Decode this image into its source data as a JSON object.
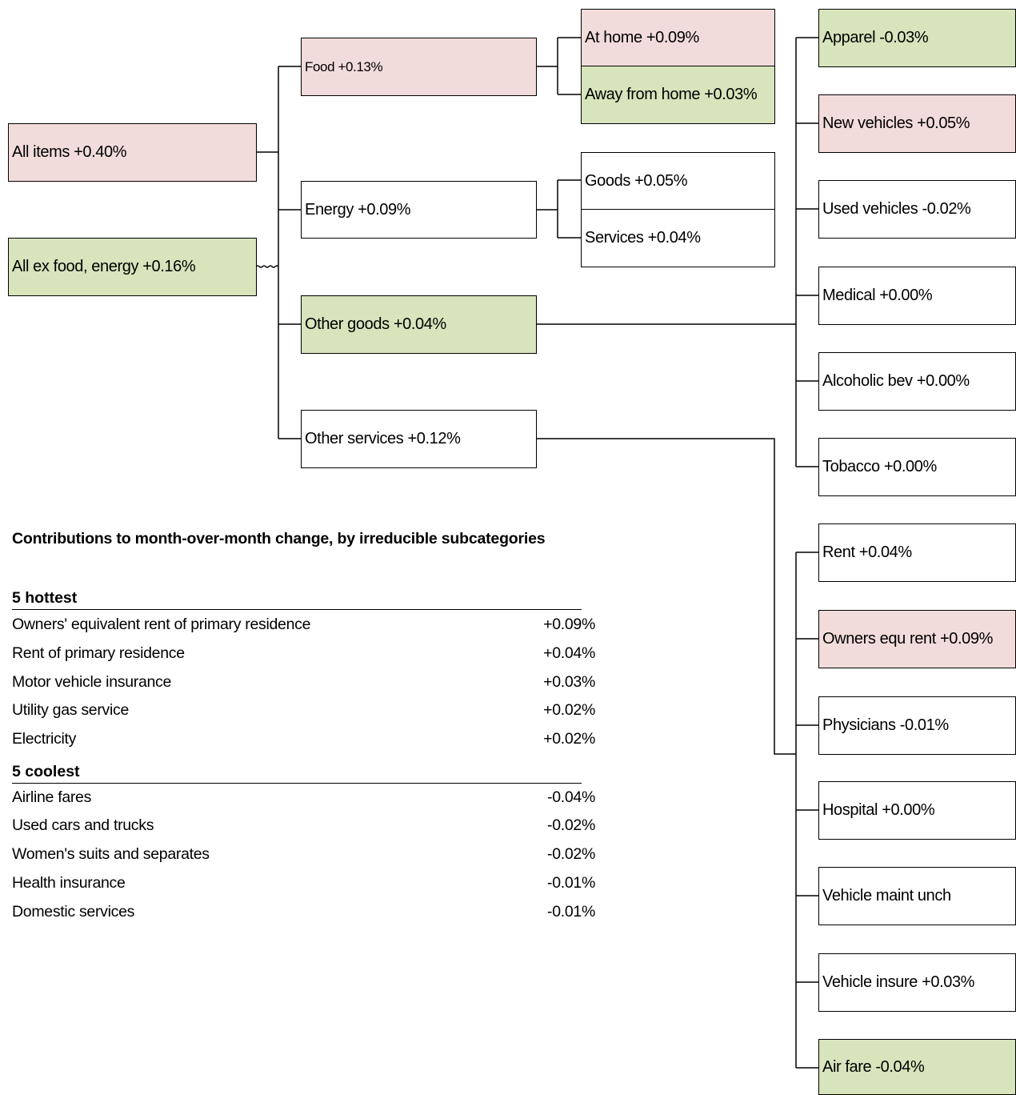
{
  "colors": {
    "hot": "#f2dcdb",
    "cool": "#d7e4bc",
    "neutral": "#ffffff",
    "line": "#000000"
  },
  "tree": {
    "all_items": "All items +0.40%",
    "core": "All ex food, energy +0.16%",
    "food": "Food +0.13%",
    "food_at_home": "At home +0.09%",
    "food_away": "Away from home +0.03%",
    "energy": "Energy +0.09%",
    "energy_goods": "Goods +0.05%",
    "energy_services": "Services +0.04%",
    "other_goods": "Other goods +0.04%",
    "other_services": "Other services +0.12%",
    "goods_items": [
      "Apparel -0.03%",
      "New vehicles +0.05%",
      "Used vehicles -0.02%",
      "Medical +0.00%",
      "Alcoholic bev +0.00%",
      "Tobacco +0.00%"
    ],
    "services_items": [
      "Rent +0.04%",
      "Owners equ rent +0.09%",
      "Physicians -0.01%",
      "Hospital +0.00%",
      "Vehicle maint unch",
      "Vehicle insure +0.03%",
      "Air fare -0.04%"
    ]
  },
  "contributions": {
    "title": "Contributions to month-over-month change, by irreducible subcategories",
    "hottest_label": "5 hottest",
    "hottest": [
      {
        "name": "Owners' equivalent rent of primary residence",
        "value": "+0.09%"
      },
      {
        "name": "Rent of primary residence",
        "value": "+0.04%"
      },
      {
        "name": "Motor vehicle insurance",
        "value": "+0.03%"
      },
      {
        "name": "Utility gas service",
        "value": "+0.02%"
      },
      {
        "name": "Electricity",
        "value": "+0.02%"
      }
    ],
    "coolest_label": "5 coolest",
    "coolest": [
      {
        "name": "Airline fares",
        "value": "-0.04%"
      },
      {
        "name": "Used cars and trucks",
        "value": "-0.02%"
      },
      {
        "name": "Women's suits and separates",
        "value": "-0.02%"
      },
      {
        "name": "Health insurance",
        "value": "-0.01%"
      },
      {
        "name": "Domestic services",
        "value": "-0.01%"
      }
    ]
  }
}
